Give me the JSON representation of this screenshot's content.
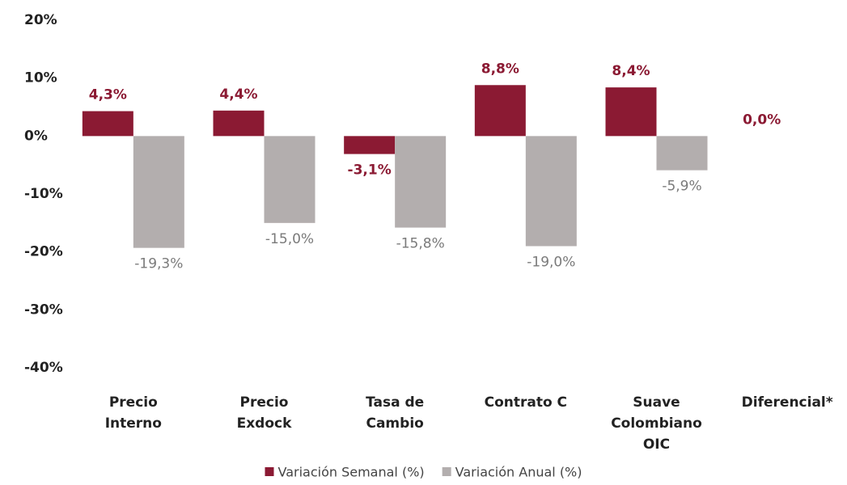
{
  "chart_data": {
    "type": "bar",
    "categories": [
      "Precio\nInterno",
      "Precio\nExdock",
      "Tasa de\nCambio",
      "Contrato C",
      "Suave\nColombiano\nOIC",
      "Diferencial*"
    ],
    "series": [
      {
        "name": "Variación Semanal (%)",
        "color": "#8b1a33",
        "label_color": "#8b1a33",
        "values": [
          4.3,
          4.4,
          -3.1,
          8.8,
          8.4,
          0.0
        ],
        "value_labels": [
          "4,3%",
          "4,4%",
          "-3,1%",
          "8,8%",
          "8,4%",
          "0,0%"
        ]
      },
      {
        "name": "Variación Anual (%)",
        "color": "#b3aeae",
        "label_color": "#7a7a7a",
        "values": [
          -19.3,
          -15.0,
          -15.8,
          -19.0,
          -5.9,
          null
        ],
        "value_labels": [
          "-19,3%",
          "-15,0%",
          "-15,8%",
          "-19,0%",
          "-5,9%",
          null
        ]
      }
    ],
    "ylim": [
      -40,
      20
    ],
    "yticks": [
      {
        "value": -40,
        "label": "-40%"
      },
      {
        "value": -30,
        "label": "-30%"
      },
      {
        "value": -20,
        "label": "-20%"
      },
      {
        "value": -10,
        "label": "-10%"
      },
      {
        "value": 0,
        "label": "0%"
      },
      {
        "value": 10,
        "label": "10%"
      },
      {
        "value": 20,
        "label": "20%"
      }
    ],
    "grid": false,
    "legend": "bottom"
  }
}
